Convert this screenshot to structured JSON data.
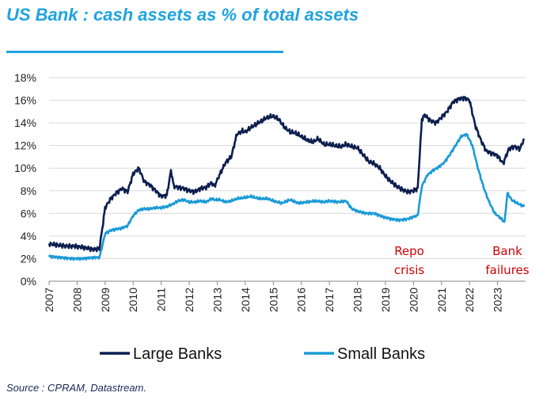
{
  "title": "US Bank : cash assets as % of total assets",
  "source": "Source : CPRAM, Datastream.",
  "chart_data": {
    "type": "line",
    "ylim": [
      0,
      18
    ],
    "xlim": [
      2007,
      2024
    ],
    "yticks": [
      "0%",
      "2%",
      "4%",
      "6%",
      "8%",
      "10%",
      "12%",
      "14%",
      "16%",
      "18%"
    ],
    "xticks": [
      "2007",
      "2008",
      "2009",
      "2010",
      "2011",
      "2012",
      "2013",
      "2014",
      "2015",
      "2016",
      "2017",
      "2018",
      "2019",
      "2020",
      "2021",
      "2022",
      "2023"
    ],
    "grid": true,
    "legend": "bottom",
    "annotations": [
      {
        "lines": [
          "Repo",
          "crisis"
        ],
        "x": 2019.85,
        "y": 3.0
      },
      {
        "lines": [
          "Bank",
          "failures"
        ],
        "x": 2023.35,
        "y": 3.0
      }
    ],
    "series": [
      {
        "name": "Large Banks",
        "color": "#0d1f4f",
        "x": [
          2007.0,
          2007.3,
          2007.6,
          2007.9,
          2008.2,
          2008.6,
          2008.8,
          2009.0,
          2009.2,
          2009.4,
          2009.6,
          2009.8,
          2010.0,
          2010.2,
          2010.4,
          2010.6,
          2010.8,
          2011.0,
          2011.2,
          2011.35,
          2011.45,
          2011.6,
          2011.8,
          2012.0,
          2012.2,
          2012.4,
          2012.6,
          2012.8,
          2012.9,
          2013.1,
          2013.3,
          2013.5,
          2013.7,
          2013.9,
          2014.0,
          2014.2,
          2014.4,
          2014.6,
          2014.8,
          2015.0,
          2015.2,
          2015.4,
          2015.6,
          2015.8,
          2016.0,
          2016.2,
          2016.4,
          2016.6,
          2016.8,
          2017.0,
          2017.2,
          2017.4,
          2017.6,
          2017.8,
          2018.0,
          2018.2,
          2018.4,
          2018.6,
          2018.8,
          2019.0,
          2019.2,
          2019.4,
          2019.6,
          2019.8,
          2020.0,
          2020.15,
          2020.3,
          2020.4,
          2020.6,
          2020.8,
          2021.0,
          2021.2,
          2021.4,
          2021.6,
          2021.8,
          2022.0,
          2022.2,
          2022.4,
          2022.6,
          2022.8,
          2023.0,
          2023.2,
          2023.4,
          2023.6,
          2023.8,
          2023.95
        ],
        "values": [
          3.3,
          3.2,
          3.1,
          3.1,
          3.0,
          2.8,
          2.9,
          6.5,
          7.3,
          7.8,
          8.2,
          7.9,
          9.5,
          10.0,
          8.8,
          8.5,
          8.0,
          7.5,
          7.6,
          9.8,
          8.4,
          8.3,
          8.2,
          8.0,
          7.9,
          8.2,
          8.3,
          8.7,
          8.4,
          9.5,
          10.5,
          11.0,
          13.0,
          13.3,
          13.2,
          13.6,
          13.9,
          14.2,
          14.5,
          14.6,
          14.3,
          13.6,
          13.2,
          13.1,
          12.8,
          12.5,
          12.3,
          12.6,
          12.1,
          12.1,
          12.0,
          11.9,
          12.1,
          11.9,
          11.8,
          11.2,
          10.6,
          10.4,
          10.0,
          9.3,
          8.8,
          8.4,
          8.1,
          7.9,
          8.0,
          8.2,
          14.3,
          14.7,
          14.2,
          14.0,
          14.5,
          15.0,
          15.8,
          16.1,
          16.2,
          16.0,
          13.8,
          12.5,
          11.5,
          11.3,
          11.1,
          10.4,
          11.7,
          11.9,
          11.7,
          12.6
        ]
      },
      {
        "name": "Small Banks",
        "color": "#1a9ad8",
        "x": [
          2007.0,
          2007.4,
          2007.8,
          2008.2,
          2008.6,
          2008.8,
          2009.0,
          2009.2,
          2009.4,
          2009.6,
          2009.8,
          2010.0,
          2010.2,
          2010.4,
          2010.6,
          2010.8,
          2011.0,
          2011.2,
          2011.4,
          2011.6,
          2011.8,
          2012.0,
          2012.2,
          2012.4,
          2012.6,
          2012.8,
          2012.9,
          2013.1,
          2013.3,
          2013.5,
          2013.7,
          2014.0,
          2014.2,
          2014.5,
          2014.8,
          2015.0,
          2015.3,
          2015.6,
          2015.9,
          2016.2,
          2016.5,
          2016.8,
          2017.0,
          2017.3,
          2017.6,
          2017.8,
          2018.0,
          2018.3,
          2018.6,
          2018.9,
          2019.2,
          2019.5,
          2019.8,
          2020.0,
          2020.15,
          2020.3,
          2020.5,
          2020.7,
          2020.9,
          2021.1,
          2021.3,
          2021.5,
          2021.7,
          2021.9,
          2022.1,
          2022.3,
          2022.5,
          2022.7,
          2022.9,
          2023.1,
          2023.25,
          2023.35,
          2023.5,
          2023.7,
          2023.95
        ],
        "values": [
          2.2,
          2.1,
          2.0,
          2.0,
          2.1,
          2.1,
          4.2,
          4.5,
          4.6,
          4.7,
          4.9,
          5.8,
          6.3,
          6.4,
          6.4,
          6.5,
          6.5,
          6.6,
          6.8,
          7.1,
          7.2,
          7.0,
          7.0,
          7.1,
          7.0,
          7.3,
          7.2,
          7.2,
          7.0,
          7.1,
          7.3,
          7.4,
          7.5,
          7.3,
          7.3,
          7.1,
          6.9,
          7.2,
          6.9,
          7.0,
          7.1,
          7.0,
          7.1,
          7.0,
          7.1,
          6.4,
          6.2,
          6.0,
          6.0,
          5.7,
          5.5,
          5.4,
          5.5,
          5.7,
          5.8,
          8.4,
          9.4,
          9.8,
          10.1,
          10.5,
          11.2,
          12.0,
          12.8,
          13.0,
          12.0,
          10.0,
          8.3,
          7.0,
          6.0,
          5.6,
          5.2,
          7.8,
          7.2,
          6.9,
          6.6
        ]
      }
    ]
  }
}
